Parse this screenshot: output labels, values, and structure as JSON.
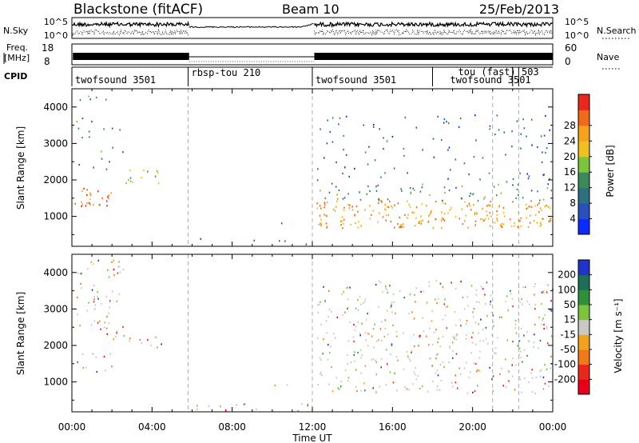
{
  "header": {
    "station": "Blackstone (fitACF)",
    "beam": "Beam 10",
    "date": "25/Feb/2013"
  },
  "nsky": {
    "left_label": "N.Sky",
    "tick_top": "10^5",
    "tick_bottom": "10^0",
    "right_label": "N.Search",
    "right_tick_top": "10^5",
    "right_tick_bottom": "10^0"
  },
  "freq": {
    "left_label_line1": "Freq.",
    "left_label_line2": "[MHz]",
    "tick_top": "18",
    "tick_bottom": "8",
    "right_label": "Nave",
    "right_tick_top": "60",
    "right_tick_bottom": "0"
  },
  "cpid": {
    "label": "CPID",
    "modes": [
      {
        "text": "twofsound 3501",
        "start_hour": 0.0
      },
      {
        "text": "rbsp-tou 210",
        "start_hour": 5.8
      },
      {
        "text": "twofsound 3501",
        "start_hour": 12.0
      },
      {
        "text": "tou (fast) 503",
        "start_hour": 18.0,
        "row": 0
      },
      {
        "text": "twofsound 3501",
        "start_hour": 18.0,
        "row": 1
      }
    ]
  },
  "chart_data": [
    {
      "type": "heatmap",
      "panel": "power",
      "ylabel": "Slant Range [km]",
      "xlabel": "",
      "xlim_hours": [
        0,
        24
      ],
      "ylim": [
        180,
        4500
      ],
      "yticks": [
        1000,
        2000,
        3000,
        4000
      ],
      "colorbar": {
        "label": "Power [dB]",
        "ticks": [
          "4",
          "8",
          "12",
          "16",
          "20",
          "24",
          "28"
        ],
        "colors": [
          "#0b2cff",
          "#2a4fb8",
          "#2f6f80",
          "#3c8a5b",
          "#7cc43c",
          "#f0c020",
          "#f5a21e",
          "#ef6a1a",
          "#e8271d"
        ]
      },
      "echo_regions": [
        {
          "h0": 0.0,
          "h1": 2.0,
          "r0": 1300,
          "r1": 1800,
          "level": 0.85
        },
        {
          "h0": 1.8,
          "h1": 4.5,
          "r0": 1900,
          "r1": 2300,
          "level": 0.55
        },
        {
          "h0": 0.2,
          "h1": 2.6,
          "r0": 2300,
          "r1": 4400,
          "level": 0.3
        },
        {
          "h0": 6.0,
          "h1": 12.0,
          "r0": 220,
          "r1": 420,
          "level": 0.15
        },
        {
          "h0": 10.0,
          "h1": 10.9,
          "r0": 800,
          "r1": 950,
          "level": 0.2
        },
        {
          "h0": 12.2,
          "h1": 24.0,
          "r0": 700,
          "r1": 1450,
          "level": 0.75
        },
        {
          "h0": 12.2,
          "h1": 24.0,
          "r0": 1450,
          "r1": 1900,
          "level": 0.35
        },
        {
          "h0": 12.2,
          "h1": 24.0,
          "r0": 1900,
          "r1": 3800,
          "level": 0.2
        }
      ]
    },
    {
      "type": "heatmap",
      "panel": "velocity",
      "ylabel": "Slant Range [km]",
      "xlabel": "Time UT",
      "xticks": [
        "00:00",
        "04:00",
        "08:00",
        "12:00",
        "16:00",
        "20:00",
        "00:00"
      ],
      "xlim_hours": [
        0,
        24
      ],
      "ylim": [
        180,
        4500
      ],
      "yticks": [
        1000,
        2000,
        3000,
        4000
      ],
      "colorbar": {
        "label": "Velocity [m s⁻¹]",
        "ticks": [
          "200",
          "100",
          "50",
          "15",
          "-15",
          "-50",
          "-100",
          "-200"
        ],
        "colors": [
          "#2233c8",
          "#1f6e5a",
          "#2f8f3a",
          "#7cc43c",
          "#c9c9c4",
          "#f2a21e",
          "#f07a1a",
          "#e8271d",
          "#e8001a"
        ]
      },
      "echo_regions": [
        {
          "h0": 0.0,
          "h1": 2.0,
          "r0": 1300,
          "r1": 1800,
          "level": 0.5
        },
        {
          "h0": 1.8,
          "h1": 4.5,
          "r0": 1900,
          "r1": 2300,
          "level": 0.5
        },
        {
          "h0": 0.2,
          "h1": 2.6,
          "r0": 2300,
          "r1": 4400,
          "level": 0.45
        },
        {
          "h0": 6.0,
          "h1": 12.0,
          "r0": 220,
          "r1": 420,
          "level": 0.35
        },
        {
          "h0": 10.0,
          "h1": 10.9,
          "r0": 800,
          "r1": 950,
          "level": 0.6
        },
        {
          "h0": 12.2,
          "h1": 24.0,
          "r0": 700,
          "r1": 1900,
          "level": 0.5
        },
        {
          "h0": 12.2,
          "h1": 24.0,
          "r0": 1900,
          "r1": 3800,
          "level": 0.5
        }
      ]
    }
  ]
}
